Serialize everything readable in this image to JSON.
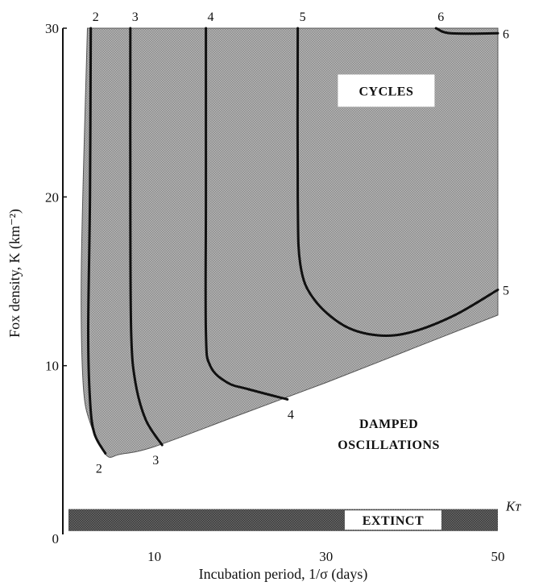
{
  "chart_data": {
    "type": "line",
    "title": "",
    "xlabel": "Incubation period, 1/σ (days)",
    "ylabel": "Fox density, K (km⁻²)",
    "xlim": [
      0,
      50
    ],
    "ylim": [
      0,
      30
    ],
    "x_ticks": [
      {
        "value": 0,
        "label": "0"
      },
      {
        "value": 10,
        "label": "10"
      },
      {
        "value": 30,
        "label": "30"
      },
      {
        "value": 50,
        "label": "50"
      }
    ],
    "y_ticks": [
      {
        "value": 10,
        "label": "10"
      },
      {
        "value": 20,
        "label": "20"
      },
      {
        "value": 30,
        "label": "30"
      }
    ],
    "grid": false,
    "regions": [
      {
        "name": "cycles",
        "label": "CYCLES",
        "color": "#9a9a9a"
      },
      {
        "name": "damped",
        "label": "DAMPED\nOSCILLATIONS",
        "color": "#ffffff"
      },
      {
        "name": "extinct",
        "label": "EXTINCT",
        "color": "#4a4a4a"
      }
    ],
    "threshold": {
      "label": "Kᴛ",
      "y": 1.5
    },
    "cycles_boundary": [
      [
        2.2,
        30
      ],
      [
        1.5,
        16
      ],
      [
        1.7,
        9
      ],
      [
        2.6,
        6.5
      ],
      [
        4.4,
        4.7
      ],
      [
        6,
        4.75
      ],
      [
        10,
        5.2
      ],
      [
        20,
        7.1
      ],
      [
        30,
        9
      ],
      [
        40,
        11
      ],
      [
        50,
        13
      ],
      [
        50,
        30
      ]
    ],
    "series": [
      {
        "name": "",
        "label": "2",
        "end_label": "2",
        "points": [
          [
            2.6,
            30
          ],
          [
            2.5,
            20
          ],
          [
            2.3,
            12
          ],
          [
            2.5,
            8
          ],
          [
            3,
            6
          ],
          [
            4.3,
            4.8
          ]
        ]
      },
      {
        "name": "",
        "label": "3",
        "end_label": "3",
        "points": [
          [
            7.2,
            30
          ],
          [
            7.2,
            20
          ],
          [
            7.3,
            12
          ],
          [
            7.8,
            9
          ],
          [
            9,
            6.8
          ],
          [
            10.9,
            5.3
          ]
        ]
      },
      {
        "name": "",
        "label": "4",
        "end_label": "4",
        "points": [
          [
            16,
            30
          ],
          [
            16,
            20
          ],
          [
            16,
            12
          ],
          [
            16.5,
            10
          ],
          [
            18.5,
            9
          ],
          [
            21,
            8.6
          ],
          [
            25.5,
            8
          ]
        ]
      },
      {
        "name": "",
        "label": "5",
        "end_label": "5",
        "points": [
          [
            26.7,
            30
          ],
          [
            26.7,
            20
          ],
          [
            27,
            16
          ],
          [
            28.5,
            14
          ],
          [
            32,
            12.4
          ],
          [
            36,
            11.8
          ],
          [
            40,
            12
          ],
          [
            45,
            13
          ],
          [
            50,
            14.5
          ]
        ]
      },
      {
        "name": "",
        "label": "6",
        "end_label": "6",
        "points": [
          [
            42.8,
            30
          ],
          [
            44.5,
            29.7
          ],
          [
            50,
            29.7
          ]
        ]
      }
    ]
  }
}
